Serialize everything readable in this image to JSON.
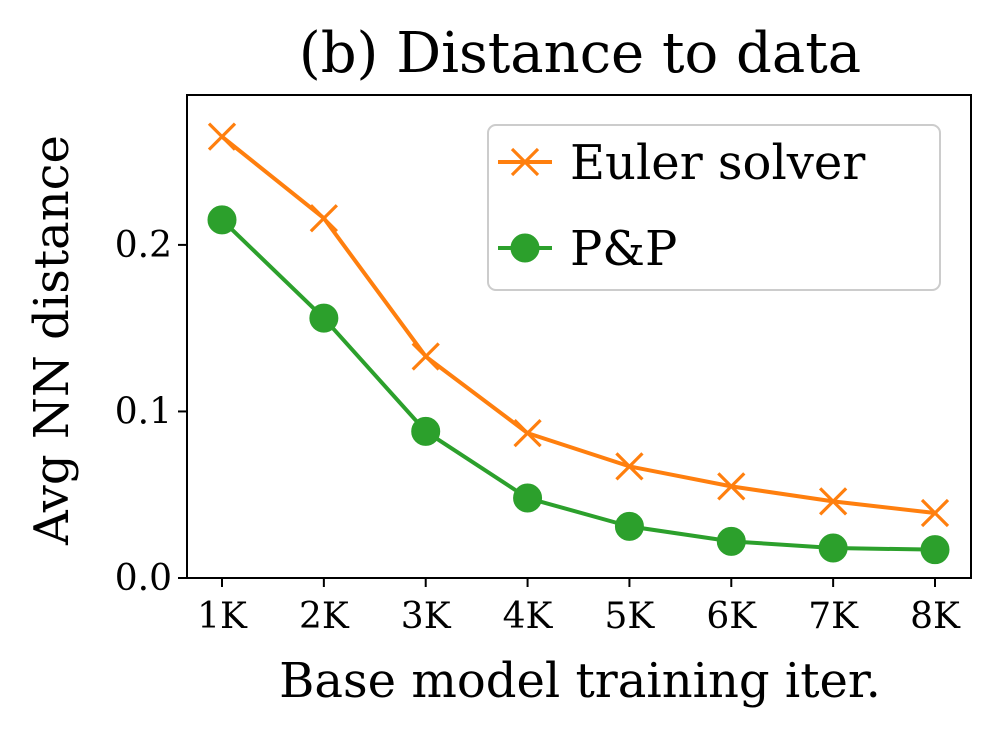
{
  "chart_data": {
    "type": "line",
    "title": "(b) Distance to data",
    "xlabel": "Base model training iter.",
    "ylabel": "Avg NN distance",
    "categories": [
      "1K",
      "2K",
      "3K",
      "4K",
      "5K",
      "6K",
      "7K",
      "8K"
    ],
    "yticks": [
      0.0,
      0.1,
      0.2
    ],
    "ytick_labels": [
      "0.0",
      "0.1",
      "0.2"
    ],
    "ylim": [
      0.0,
      0.29
    ],
    "grid": false,
    "legend_position": "top-right",
    "series": [
      {
        "name": "Euler solver",
        "marker": "x",
        "color": "#ff7f0e",
        "values": [
          0.265,
          0.216,
          0.133,
          0.087,
          0.067,
          0.055,
          0.046,
          0.039
        ]
      },
      {
        "name": "P&P",
        "marker": "circle",
        "color": "#2ca02c",
        "values": [
          0.215,
          0.156,
          0.088,
          0.048,
          0.031,
          0.022,
          0.018,
          0.017
        ]
      }
    ]
  }
}
